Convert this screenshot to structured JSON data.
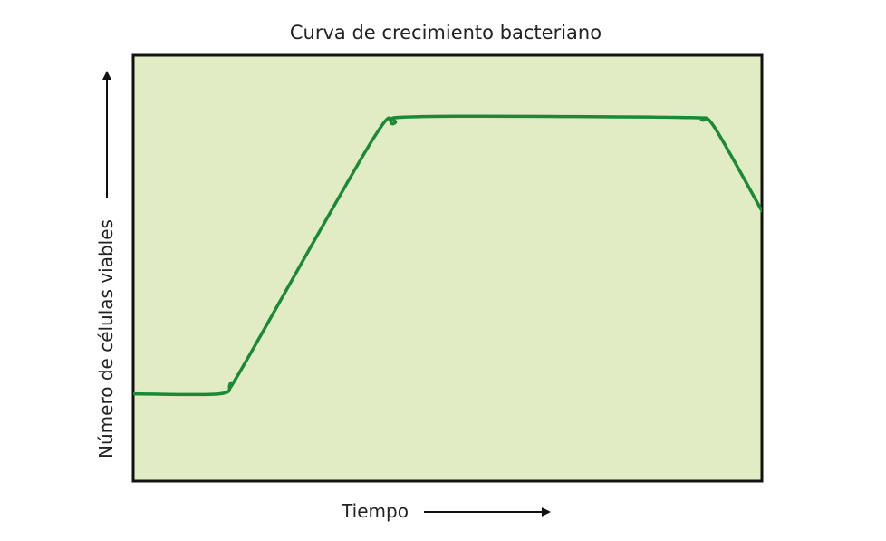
{
  "chart_data": {
    "type": "line",
    "title": "Curva de crecimiento bacteriano",
    "xlabel": "Tiempo",
    "ylabel": "Número de células viables",
    "xlim": [
      0,
      100
    ],
    "ylim": [
      0,
      100
    ],
    "grid": false,
    "legend": "none",
    "axis_ticks": false,
    "colors": {
      "plot_background": "#e2ecc4",
      "line": "#1a8a35",
      "frame": "#111111",
      "arrow": "#111111"
    },
    "series": [
      {
        "points": [
          [
            0,
            20.5
          ],
          [
            13.7,
            20.5
          ],
          [
            15.5,
            23.0
          ],
          [
            17.5,
            27.0
          ],
          [
            38.0,
            80.0
          ],
          [
            41.5,
            84.0
          ],
          [
            45.5,
            85.6
          ],
          [
            87.0,
            85.4
          ],
          [
            90.5,
            84.8
          ],
          [
            92.5,
            83.0
          ],
          [
            100,
            63.5
          ]
        ]
      }
    ]
  }
}
